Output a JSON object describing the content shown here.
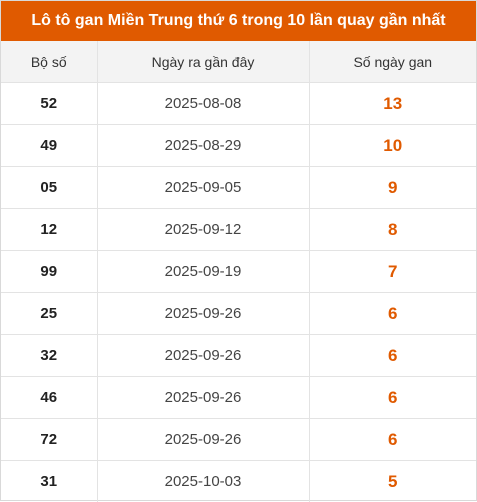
{
  "colors": {
    "accent": "#e05a00"
  },
  "title": "Lô tô gan Miền Trung thứ 6 trong 10 lần quay gần nhất",
  "headers": [
    "Bộ số",
    "Ngày ra gần đây",
    "Số ngày gan"
  ],
  "rows": [
    {
      "number": "52",
      "date": "2025-08-08",
      "days": "13"
    },
    {
      "number": "49",
      "date": "2025-08-29",
      "days": "10"
    },
    {
      "number": "05",
      "date": "2025-09-05",
      "days": "9"
    },
    {
      "number": "12",
      "date": "2025-09-12",
      "days": "8"
    },
    {
      "number": "99",
      "date": "2025-09-19",
      "days": "7"
    },
    {
      "number": "25",
      "date": "2025-09-26",
      "days": "6"
    },
    {
      "number": "32",
      "date": "2025-09-26",
      "days": "6"
    },
    {
      "number": "46",
      "date": "2025-09-26",
      "days": "6"
    },
    {
      "number": "72",
      "date": "2025-09-26",
      "days": "6"
    },
    {
      "number": "31",
      "date": "2025-10-03",
      "days": "5"
    }
  ]
}
